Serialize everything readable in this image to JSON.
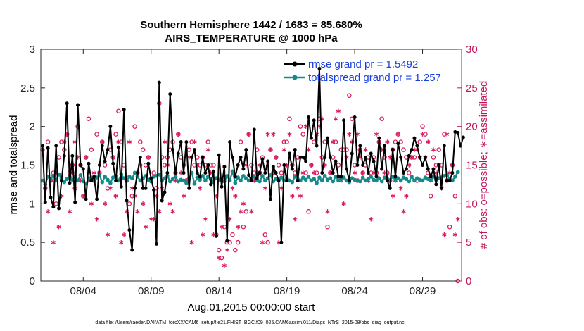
{
  "chart_data": {
    "type": "line",
    "title_line1": "Southern Hemisphere 1442 / 1683 = 85.680%",
    "title_line2": "AIRS_TEMPERATURE @ 1000 hPa",
    "ylabel_left": "rmse and totalspread",
    "ylabel_right": "# of obs: o=possible; ∗=assimilated",
    "xlabel": "Aug.01,2015 00:00:00 start",
    "footnote": "data file: /Users/raeder/DAI/ATM_forcXX/CAM6_setup/f.e21.FHIST_BGC.f09_025.CAM6assim.011/Diags_NTrS_2015-08/obs_diag_output.nc",
    "ylim_left": [
      0,
      3
    ],
    "ylim_right": [
      0,
      30
    ],
    "xlim": [
      0.875,
      31.875
    ],
    "yticks_left": [
      "0",
      "0.5",
      "1",
      "1.5",
      "2",
      "2.5",
      "3"
    ],
    "yticks_right": [
      "0",
      "5",
      "10",
      "15",
      "20",
      "25",
      "30"
    ],
    "xticks": [
      {
        "x": 4,
        "label": "08/04"
      },
      {
        "x": 9,
        "label": "08/09"
      },
      {
        "x": 14,
        "label": "08/14"
      },
      {
        "x": 19,
        "label": "08/19"
      },
      {
        "x": 24,
        "label": "08/24"
      },
      {
        "x": 29,
        "label": "08/29"
      }
    ],
    "colors": {
      "rmse": "#000000",
      "spread": "#168a8a",
      "obs": "#d81b60",
      "right_axis": "#c2185b",
      "legend_text": "#1a3fe0"
    },
    "series": [
      {
        "name": "rmse grand pr = 1.5492",
        "values": [
          1.75,
          1.02,
          1.72,
          1.08,
          0.96,
          1.75,
          0.94,
          1.3,
          1.62,
          2.3,
          1.27,
          1.62,
          1.02,
          2.28,
          1.5,
          1.45,
          1.06,
          1.52,
          1.3,
          1.35,
          1.06,
          1.5,
          1.75,
          1.55,
          1.7,
          2.0,
          1.52,
          1.3,
          1.73,
          1.22,
          2.22,
          1.04,
          0.66,
          0.4,
          1.2,
          1.4,
          1.6,
          1.2,
          1.2,
          1.52,
          1.33,
          1.18,
          0.48,
          2.57,
          1.04,
          1.15,
          1.4,
          2.42,
          1.7,
          1.4,
          1.65,
          1.8,
          1.4,
          1.8,
          1.2,
          1.6,
          1.7,
          1.4,
          1.35,
          1.6,
          1.4,
          1.5,
          1.25,
          1.42,
          0.58,
          1.63,
          1.22,
          1.48,
          0.52,
          1.8,
          1.6,
          1.35,
          1.5,
          1.6,
          1.45,
          1.7,
          1.37,
          1.3,
          1.96,
          1.33,
          1.4,
          1.58,
          1.4,
          1.55,
          1.06,
          1.48,
          1.4,
          1.3,
          0.5,
          1.5,
          1.3,
          1.65,
          1.45,
          1.7,
          1.3,
          1.6,
          1.6,
          1.55,
          2.12,
          1.85,
          2.08,
          1.75,
          2.75,
          1.4,
          1.6,
          1.85,
          1.6,
          1.4,
          1.55,
          1.35,
          1.35,
          2.08,
          1.45,
          1.3,
          1.65,
          2.12,
          1.5,
          1.75,
          1.5,
          1.6,
          1.4,
          1.65,
          1.55,
          1.35,
          1.85,
          1.45,
          1.75,
          1.3,
          1.2,
          1.7,
          1.35,
          1.78,
          1.6,
          1.4,
          1.45,
          1.62,
          1.7,
          1.85,
          1.75,
          1.6,
          1.5,
          1.6,
          1.45,
          1.35,
          1.45,
          1.25,
          1.5,
          1.2,
          1.75,
          1.3,
          1.3,
          1.4,
          1.93,
          1.92,
          1.75,
          1.86
        ]
      },
      {
        "name": "totalspread grand pr = 1.257",
        "values": [
          1.3,
          1.25,
          1.35,
          1.32,
          1.36,
          1.3,
          1.38,
          1.33,
          1.28,
          1.32,
          1.35,
          1.31,
          1.35,
          1.3,
          1.37,
          1.29,
          1.26,
          1.33,
          1.34,
          1.3,
          1.34,
          1.37,
          1.28,
          1.35,
          1.31,
          1.27,
          1.34,
          1.36,
          1.3,
          1.38,
          1.33,
          1.3,
          1.35,
          1.33,
          1.4,
          1.35,
          1.3,
          1.33,
          1.36,
          1.31,
          1.29,
          1.35,
          1.36,
          1.38,
          1.3,
          1.33,
          1.36,
          1.29,
          1.32,
          1.35,
          1.29,
          1.31,
          1.3,
          1.27,
          1.33,
          1.4,
          1.26,
          1.34,
          1.31,
          1.36,
          1.3,
          1.35,
          1.32,
          1.28,
          1.33,
          1.31,
          1.3,
          1.29,
          1.36,
          1.3,
          1.42,
          1.27,
          1.34,
          1.3,
          1.36,
          1.33,
          1.3,
          1.32,
          1.35,
          1.31,
          1.29,
          1.36,
          1.3,
          1.33,
          1.37,
          1.29,
          1.32,
          1.31,
          1.34,
          1.3,
          1.33,
          1.3,
          1.28,
          1.35,
          1.32,
          1.3,
          1.34,
          1.31,
          1.35,
          1.3,
          1.32,
          1.27,
          1.34,
          1.3,
          1.36,
          1.31,
          1.33,
          1.29,
          1.35,
          1.3,
          1.32,
          1.34,
          1.3,
          1.28,
          1.33,
          1.31,
          1.3,
          1.29,
          1.34,
          1.3,
          1.32,
          1.35,
          1.31,
          1.3,
          1.33,
          1.29,
          1.34,
          1.32,
          1.3,
          1.35,
          1.31,
          1.33,
          1.3,
          1.34,
          1.32,
          1.29,
          1.35,
          1.3,
          1.33,
          1.31,
          1.3,
          1.34,
          1.32,
          1.3,
          1.35,
          1.31,
          1.33,
          1.34,
          1.36,
          1.37,
          1.32,
          1.3,
          1.35,
          1.41
        ]
      }
    ],
    "obs_possible": [
      17,
      12,
      18,
      13,
      14,
      10,
      16,
      18,
      17,
      19,
      14,
      15,
      12,
      20,
      15,
      11,
      16,
      21,
      17,
      13,
      19,
      14,
      18,
      15,
      12,
      17,
      16,
      19,
      22,
      18,
      15,
      13,
      10,
      11,
      20,
      14,
      18,
      17,
      15,
      16,
      13,
      14,
      12,
      23,
      16,
      15,
      16,
      17,
      18,
      14,
      19,
      16,
      15,
      13,
      17,
      18,
      15,
      16,
      15,
      16,
      15,
      18,
      15,
      15,
      6,
      4,
      3,
      7,
      5,
      5,
      6,
      4,
      5,
      18,
      7,
      9,
      19,
      15,
      14,
      17,
      14,
      16,
      6,
      5,
      17,
      14,
      16,
      15,
      14,
      18,
      18,
      21,
      15,
      14,
      16,
      20,
      19,
      14,
      9,
      15,
      18,
      14,
      21,
      16,
      18,
      7,
      14,
      16,
      18,
      15,
      17,
      17,
      17,
      24,
      21,
      15,
      13,
      17,
      14,
      15,
      16,
      14,
      16,
      14,
      18,
      21,
      16,
      14,
      13,
      17,
      18,
      19,
      18,
      17,
      16,
      14,
      16,
      16,
      13,
      18,
      20,
      19,
      14,
      11,
      16,
      15,
      17,
      15,
      19,
      13,
      7,
      15,
      11,
      0
    ],
    "obs_assimilated": [
      17,
      12,
      9,
      13,
      5,
      14,
      7,
      11,
      18,
      19,
      9,
      14,
      18,
      16,
      13,
      11,
      16,
      13,
      10,
      14,
      8,
      14,
      18,
      10,
      6,
      12,
      16,
      11,
      18,
      5,
      6,
      9,
      18,
      12,
      11,
      9,
      15,
      10,
      7,
      16,
      8,
      8,
      11,
      9,
      12,
      18,
      15,
      10,
      9,
      13,
      19,
      14,
      11,
      13,
      16,
      5,
      18,
      15,
      12,
      6,
      8,
      17,
      14,
      6,
      11,
      3,
      7,
      2,
      4,
      8,
      12,
      11,
      7,
      9,
      10,
      15,
      19,
      9,
      13,
      14,
      15,
      5,
      12,
      19,
      17,
      19,
      16,
      5,
      12,
      17,
      15,
      19,
      11,
      8,
      12,
      11,
      14,
      20,
      17,
      15,
      14,
      19,
      20,
      21,
      15,
      9,
      14,
      18,
      21,
      22,
      13,
      10,
      16,
      19,
      18,
      14,
      19,
      16,
      14,
      17,
      13,
      8,
      14,
      19,
      18,
      17,
      14,
      18,
      16,
      11,
      13,
      19,
      12,
      9,
      11,
      15,
      16,
      17,
      17,
      16,
      19,
      16,
      18,
      13,
      17,
      14,
      15,
      12,
      6,
      19,
      14,
      15,
      6,
      8
    ]
  }
}
